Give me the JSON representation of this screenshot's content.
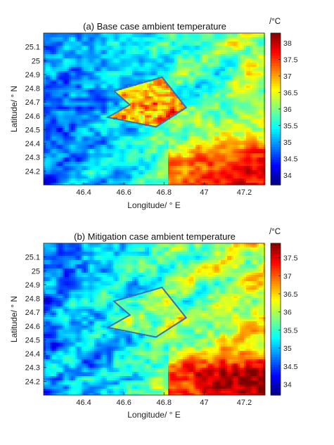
{
  "chart_data": [
    {
      "type": "heatmap",
      "title": "(a) Base case ambient temperature",
      "xlabel": "Longitude/ ° E",
      "ylabel": "Latitude/ ° N",
      "colorbar_unit": "/°C",
      "xlim": [
        46.2,
        47.3
      ],
      "ylim": [
        24.1,
        25.2
      ],
      "xticks": [
        46.4,
        46.6,
        46.8,
        47,
        47.2
      ],
      "xtick_labels": [
        "46.4",
        "46.6",
        "46.8",
        "47",
        "47.2"
      ],
      "yticks": [
        24.2,
        24.3,
        24.4,
        24.5,
        24.6,
        24.7,
        24.8,
        24.9,
        25,
        25.1
      ],
      "ytick_labels": [
        "24.2",
        "24.3",
        "24.4",
        "24.5",
        "24.6",
        "24.7",
        "24.8",
        "24.9",
        "25",
        "25.1"
      ],
      "clim": [
        33.7,
        38.3
      ],
      "colorbar_ticks": [
        34,
        34.5,
        35,
        35.5,
        36,
        36.5,
        37,
        37.5,
        38
      ],
      "colorbar_tick_labels": [
        "34",
        "34.5",
        "35",
        "35.5",
        "36",
        "36.5",
        "37",
        "37.5",
        "38"
      ],
      "colormap": "jet",
      "city_hotspot_max": 38.0,
      "polygon_color": "#3a6fb0",
      "city_boundary": [
        [
          46.55,
          24.78
        ],
        [
          46.79,
          24.88
        ],
        [
          46.91,
          24.66
        ],
        [
          46.76,
          24.52
        ],
        [
          46.52,
          24.59
        ],
        [
          46.63,
          24.68
        ]
      ]
    },
    {
      "type": "heatmap",
      "title": "(b) Mitigation case ambient temperature",
      "xlabel": "Longitude/ ° E",
      "ylabel": "Latitude/ ° N",
      "colorbar_unit": "/°C",
      "xlim": [
        46.2,
        47.3
      ],
      "ylim": [
        24.1,
        25.2
      ],
      "xticks": [
        46.4,
        46.6,
        46.8,
        47,
        47.2
      ],
      "xtick_labels": [
        "46.4",
        "46.6",
        "46.8",
        "47",
        "47.2"
      ],
      "yticks": [
        24.2,
        24.3,
        24.4,
        24.5,
        24.6,
        24.7,
        24.8,
        24.9,
        25,
        25.1
      ],
      "ytick_labels": [
        "24.2",
        "24.3",
        "24.4",
        "24.5",
        "24.6",
        "24.7",
        "24.8",
        "24.9",
        "25",
        "25.1"
      ],
      "clim": [
        33.7,
        37.9
      ],
      "colorbar_ticks": [
        34,
        34.5,
        35,
        35.5,
        36,
        36.5,
        37,
        37.5
      ],
      "colorbar_tick_labels": [
        "34",
        "34.5",
        "35",
        "35.5",
        "36",
        "36.5",
        "37",
        "37.5"
      ],
      "colormap": "jet",
      "city_hotspot_max": 36.6,
      "polygon_color": "#3a6fb0",
      "city_boundary": [
        [
          46.55,
          24.78
        ],
        [
          46.79,
          24.88
        ],
        [
          46.91,
          24.66
        ],
        [
          46.76,
          24.52
        ],
        [
          46.52,
          24.59
        ],
        [
          46.63,
          24.68
        ]
      ]
    }
  ]
}
